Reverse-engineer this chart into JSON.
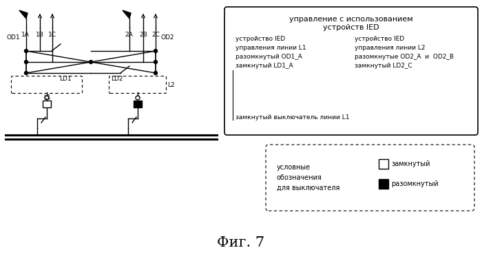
{
  "title": "Фиг. 7",
  "bg_color": "#ffffff",
  "line_color": "#000000",
  "main_box_text_lines": [
    "управление с использованием",
    "устройств IED"
  ],
  "left_col_text": [
    "устройство IED",
    "управления линии L1",
    "разомкнутый OD1_A",
    "замкнутый LD1_A"
  ],
  "right_col_text": [
    "устройство IED",
    "управления линии L2",
    "разомкнутые OD2_A  и  OD2_B",
    "замкнутый LD2_C"
  ],
  "bottom_text": "замкнутый выключатель линии L1",
  "legend_left": "условные\nобозначения\nдля выключателя",
  "legend_open": "замкнутый",
  "legend_closed": "разомкнутый"
}
